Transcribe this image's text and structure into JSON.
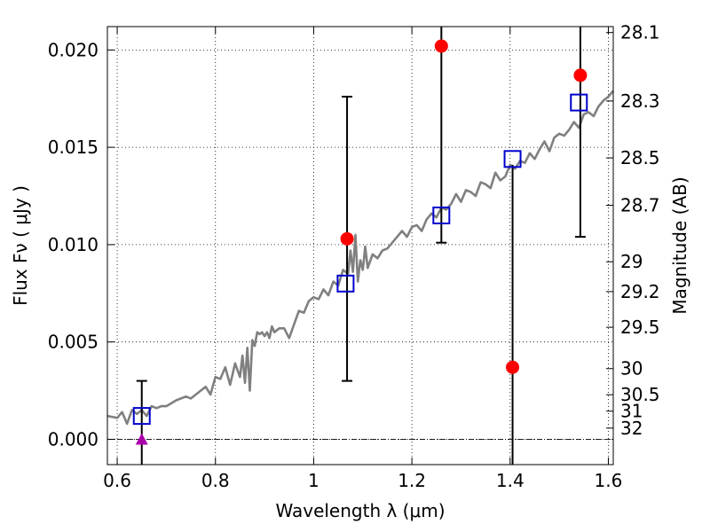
{
  "chart_data": {
    "type": "scatter",
    "xlabel": "Wavelength  λ (μm)",
    "ylabel_left": "Flux  Fν  ( μJy )",
    "ylabel_right": "Magnitude (AB)",
    "xlim": [
      0.58,
      1.61
    ],
    "ylim": [
      -0.0013,
      0.0212
    ],
    "grid": true,
    "x_ticks": [
      {
        "value": 0.6,
        "label": "0.6"
      },
      {
        "value": 0.8,
        "label": "0.8"
      },
      {
        "value": 1.0,
        "label": "1"
      },
      {
        "value": 1.2,
        "label": "1.2"
      },
      {
        "value": 1.4,
        "label": "1.4"
      },
      {
        "value": 1.6,
        "label": "1.6"
      }
    ],
    "y_ticks": [
      {
        "value": 0.0,
        "label": "0.000"
      },
      {
        "value": 0.005,
        "label": "0.005"
      },
      {
        "value": 0.01,
        "label": "0.010"
      },
      {
        "value": 0.015,
        "label": "0.015"
      },
      {
        "value": 0.02,
        "label": "0.020"
      }
    ],
    "mag_ticks": [
      {
        "value": 28.1,
        "label": "28.1"
      },
      {
        "value": 28.3,
        "label": "28.3"
      },
      {
        "value": 28.5,
        "label": "28.5"
      },
      {
        "value": 28.7,
        "label": "28.7"
      },
      {
        "value": 29.0,
        "label": "29"
      },
      {
        "value": 29.2,
        "label": "29.2"
      },
      {
        "value": 29.5,
        "label": "29.5"
      },
      {
        "value": 30.0,
        "label": "30"
      },
      {
        "value": 30.5,
        "label": "30.5"
      },
      {
        "value": 31.0,
        "label": "31"
      },
      {
        "value": 32.0,
        "label": "32"
      }
    ],
    "model_spectrum": {
      "color": "#808080",
      "x": [
        0.58,
        0.6,
        0.61,
        0.62,
        0.63,
        0.64,
        0.65,
        0.66,
        0.67,
        0.68,
        0.69,
        0.7,
        0.72,
        0.74,
        0.75,
        0.76,
        0.77,
        0.78,
        0.79,
        0.8,
        0.81,
        0.82,
        0.83,
        0.84,
        0.85,
        0.855,
        0.86,
        0.865,
        0.87,
        0.875,
        0.88,
        0.885,
        0.89,
        0.895,
        0.9,
        0.905,
        0.91,
        0.915,
        0.92,
        0.93,
        0.94,
        0.95,
        0.96,
        0.97,
        0.98,
        0.99,
        1.0,
        1.01,
        1.02,
        1.03,
        1.04,
        1.05,
        1.06,
        1.07,
        1.075,
        1.08,
        1.085,
        1.09,
        1.095,
        1.1,
        1.105,
        1.11,
        1.12,
        1.13,
        1.14,
        1.15,
        1.16,
        1.17,
        1.18,
        1.19,
        1.2,
        1.21,
        1.22,
        1.23,
        1.24,
        1.25,
        1.26,
        1.27,
        1.28,
        1.29,
        1.3,
        1.31,
        1.32,
        1.33,
        1.34,
        1.35,
        1.36,
        1.37,
        1.38,
        1.39,
        1.4,
        1.41,
        1.42,
        1.43,
        1.44,
        1.45,
        1.46,
        1.47,
        1.48,
        1.49,
        1.5,
        1.51,
        1.52,
        1.53,
        1.54,
        1.55,
        1.56,
        1.57,
        1.58,
        1.59,
        1.6,
        1.61
      ],
      "y": [
        0.0012,
        0.0011,
        0.0014,
        0.0008,
        0.0015,
        0.0013,
        0.0015,
        0.0012,
        0.0017,
        0.0016,
        0.0017,
        0.0017,
        0.002,
        0.0022,
        0.0021,
        0.0023,
        0.0025,
        0.0027,
        0.0023,
        0.0032,
        0.0031,
        0.0037,
        0.0028,
        0.0039,
        0.0032,
        0.0043,
        0.0029,
        0.0047,
        0.0025,
        0.0051,
        0.0048,
        0.0055,
        0.0054,
        0.0055,
        0.0053,
        0.0055,
        0.0052,
        0.0058,
        0.0055,
        0.0057,
        0.0057,
        0.0052,
        0.0059,
        0.0066,
        0.0065,
        0.0071,
        0.0073,
        0.0072,
        0.0077,
        0.0074,
        0.0081,
        0.0079,
        0.0087,
        0.0085,
        0.0097,
        0.0086,
        0.0105,
        0.0081,
        0.0092,
        0.0087,
        0.0099,
        0.0088,
        0.0095,
        0.0093,
        0.0097,
        0.0098,
        0.0101,
        0.0104,
        0.0107,
        0.0104,
        0.0109,
        0.011,
        0.0107,
        0.0113,
        0.0116,
        0.0114,
        0.0119,
        0.0118,
        0.0121,
        0.0126,
        0.0122,
        0.0128,
        0.0127,
        0.0125,
        0.0132,
        0.0131,
        0.0129,
        0.0137,
        0.0133,
        0.0135,
        0.0141,
        0.0139,
        0.0143,
        0.0142,
        0.0147,
        0.0144,
        0.0149,
        0.0153,
        0.0148,
        0.0155,
        0.0157,
        0.0156,
        0.0159,
        0.0163,
        0.016,
        0.0167,
        0.0168,
        0.0166,
        0.0171,
        0.0174,
        0.0176,
        0.0179
      ]
    },
    "model_photometry": {
      "color": "#0000cc",
      "x": [
        0.65,
        1.065,
        1.26,
        1.405,
        1.54
      ],
      "y": [
        0.0012,
        0.008,
        0.0115,
        0.0144,
        0.0173
      ]
    },
    "observed": {
      "color": "#ff0000",
      "x": [
        1.068,
        1.26,
        1.405,
        1.543
      ],
      "y": [
        0.0103,
        0.0202,
        0.0037,
        0.0187
      ],
      "yerr_low": [
        0.003,
        0.0101,
        -0.0013,
        0.0104
      ],
      "yerr_high": [
        0.0176,
        0.0212,
        0.0141,
        0.0212
      ],
      "yerr_cap_high": [
        true,
        false,
        false,
        false
      ],
      "yerr_cap_low": [
        true,
        true,
        false,
        true
      ]
    },
    "upper_limit": {
      "color": "#aa00aa",
      "x": 0.65,
      "y": 0.0,
      "err_low": -0.0013,
      "err_high": 0.003
    },
    "zero_line_color": "#000000"
  }
}
